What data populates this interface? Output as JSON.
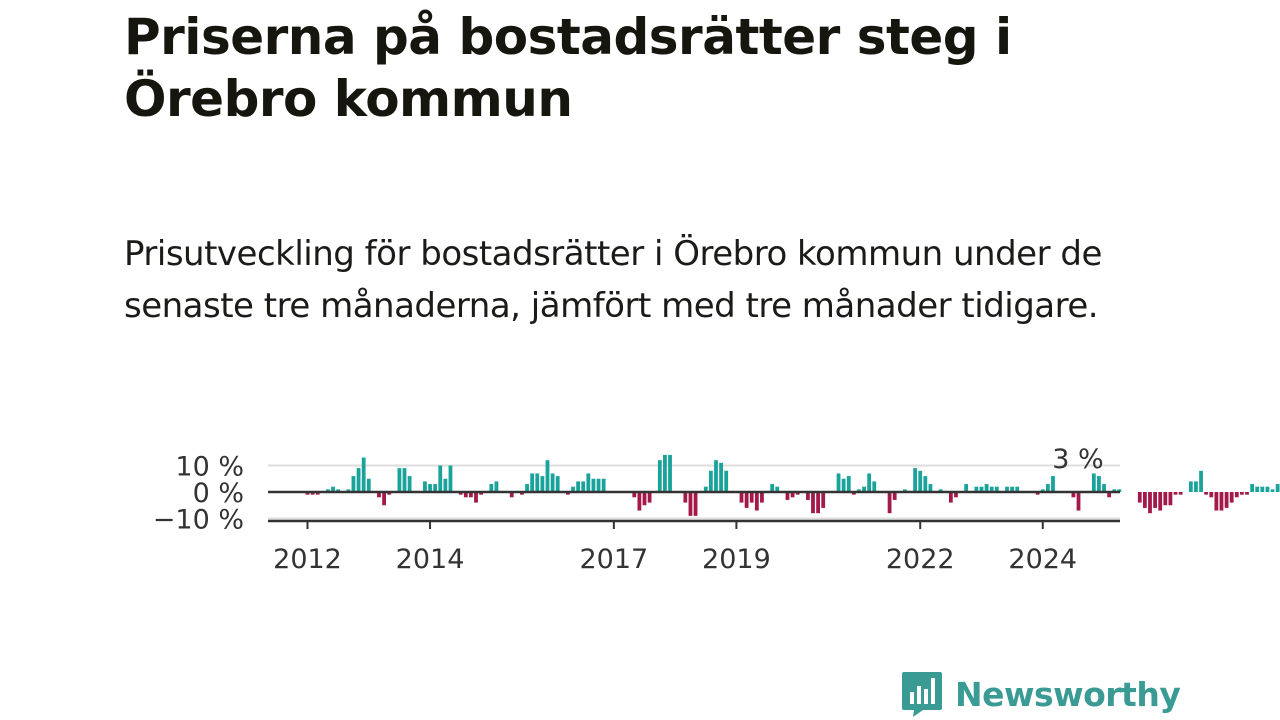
{
  "header": {
    "title": "Priserna på bostadsrätter steg i Örebro kommun",
    "subtitle": "Prisutveckling för bostadsrätter i Örebro kommun under de senaste tre månaderna, jämfört med tre månader tidigare."
  },
  "brand": {
    "name": "Newsworthy",
    "icon": "newsworthy-logo-icon",
    "color": "#3a9a94"
  },
  "chart_data": {
    "type": "bar",
    "title": "",
    "xlabel": "",
    "ylabel": "",
    "ylim": [
      -10,
      10
    ],
    "y_ticks": [
      {
        "value": 10,
        "label": "10 %"
      },
      {
        "value": 0,
        "label": "0 %"
      },
      {
        "value": -10,
        "label": "−10 %"
      }
    ],
    "x_ticks": [
      "2012",
      "2014",
      "2017",
      "2019",
      "2022",
      "2024"
    ],
    "colors": {
      "positive": "#1aa39a",
      "negative": "#a3194a"
    },
    "annotation": {
      "label": "3 %",
      "value": 3
    },
    "series": [
      {
        "start": "2012-01",
        "frequency": "monthly",
        "values": [
          -1,
          -1,
          -1,
          0,
          1,
          2,
          1,
          0,
          1,
          6,
          9,
          13,
          5,
          0,
          -2,
          -5,
          -1,
          0,
          9,
          9,
          6,
          0,
          0,
          4,
          3,
          3,
          10,
          5,
          10,
          0,
          -1,
          -2,
          -2,
          -4,
          -1,
          0,
          3,
          4,
          0,
          0,
          -2,
          0,
          -1,
          3,
          7,
          7,
          6,
          12,
          7,
          6,
          0,
          -1,
          2,
          4,
          4,
          7,
          5,
          5,
          5,
          0,
          0,
          0,
          0,
          0,
          -2,
          -7,
          -5,
          -4,
          0,
          12,
          14,
          14,
          0,
          0,
          -4,
          -9,
          -9,
          0,
          2,
          8,
          12,
          11,
          8,
          0,
          0,
          -4,
          -6,
          -4,
          -7,
          -4,
          0,
          3,
          2,
          0,
          -3,
          -2,
          -1,
          0,
          -3,
          -8,
          -8,
          -6,
          0,
          0,
          7,
          5,
          6,
          -1,
          1,
          2,
          7,
          4,
          0,
          0,
          -8,
          -3,
          0,
          1,
          0,
          9,
          8,
          6,
          3,
          0,
          1,
          0,
          -4,
          -2,
          0,
          3,
          0,
          2,
          2,
          3,
          2,
          2,
          0,
          2,
          2,
          2,
          0,
          0,
          0,
          -1,
          1,
          3,
          6,
          0,
          0,
          0,
          -2,
          -7,
          0,
          0,
          7,
          6,
          3,
          -2,
          1,
          1,
          0,
          0,
          0,
          -4,
          -6,
          -8,
          -6,
          -7,
          -5,
          -5,
          -1,
          -1,
          0,
          4,
          4,
          8,
          -1,
          -2,
          -7,
          -7,
          -6,
          -4,
          -2,
          -1,
          -1,
          3,
          2,
          2,
          2,
          1,
          3
        ]
      }
    ]
  }
}
